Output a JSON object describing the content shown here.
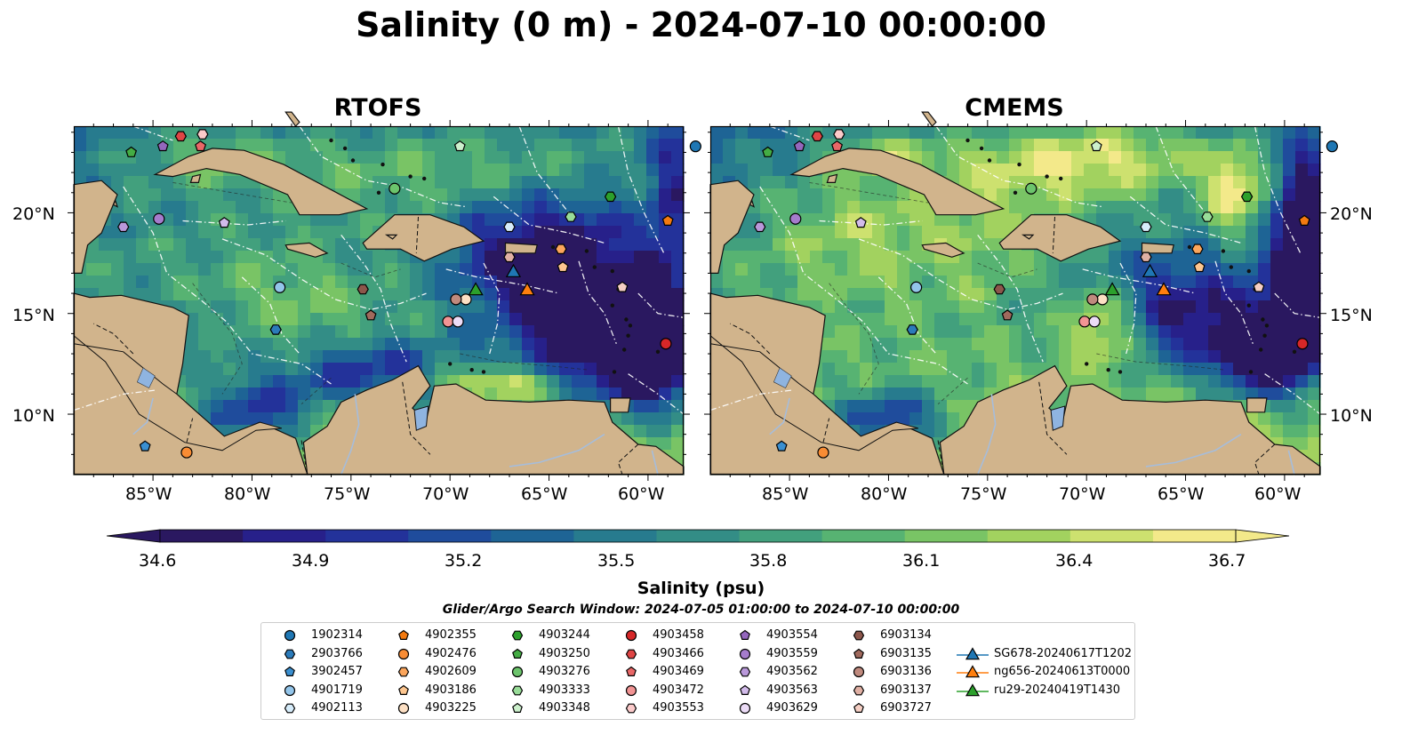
{
  "title": "Salinity (0 m) - 2024-07-10 00:00:00",
  "panels": [
    {
      "title": "RTOFS"
    },
    {
      "title": "CMEMS"
    }
  ],
  "lat_labels": [
    "20°N",
    "15°N",
    "10°N"
  ],
  "lon_labels": [
    "85°W",
    "80°W",
    "75°W",
    "70°W",
    "65°W",
    "60°W"
  ],
  "colorbar": {
    "label": "Salinity (psu)",
    "ticks": [
      "34.6",
      "34.9",
      "35.2",
      "35.5",
      "35.8",
      "36.1",
      "36.4",
      "36.7"
    ],
    "colors": [
      "#2a1860",
      "#27208a",
      "#23329a",
      "#1f4c9c",
      "#1e6495",
      "#277b8e",
      "#338d86",
      "#42a07d",
      "#57b372",
      "#79c465",
      "#a2d25f",
      "#cde16f",
      "#f3e98a"
    ]
  },
  "search_window": "Glider/Argo Search Window: 2024-07-05 01:00:00 to 2024-07-10 00:00:00",
  "map_colors": {
    "land": "#d1b48c",
    "lake": "#8fb4e0",
    "river": "#a6bddb"
  },
  "legend": [
    {
      "label": "1902314",
      "marker": "circle",
      "color": "#1f77b4"
    },
    {
      "label": "2903766",
      "marker": "hexagon",
      "color": "#2b7bba"
    },
    {
      "label": "3902457",
      "marker": "pentagon",
      "color": "#3a8fd0"
    },
    {
      "label": "4901719",
      "marker": "circle",
      "color": "#93c5ea"
    },
    {
      "label": "4902113",
      "marker": "hexagon",
      "color": "#d6ecfa"
    },
    {
      "label": "4902355",
      "marker": "pentagon",
      "color": "#f37a10"
    },
    {
      "label": "4902476",
      "marker": "circle",
      "color": "#f88c34"
    },
    {
      "label": "4902609",
      "marker": "hexagon",
      "color": "#fca65c"
    },
    {
      "label": "4903186",
      "marker": "pentagon",
      "color": "#fdc68f"
    },
    {
      "label": "4903225",
      "marker": "circle",
      "color": "#fde0c4"
    },
    {
      "label": "4903244",
      "marker": "hexagon",
      "color": "#2ca02c"
    },
    {
      "label": "4903250",
      "marker": "pentagon",
      "color": "#44ad44"
    },
    {
      "label": "4903276",
      "marker": "circle",
      "color": "#6cc46c"
    },
    {
      "label": "4903333",
      "marker": "hexagon",
      "color": "#98dc98"
    },
    {
      "label": "4903348",
      "marker": "pentagon",
      "color": "#ccf0cc"
    },
    {
      "label": "4903458",
      "marker": "circle",
      "color": "#d62728"
    },
    {
      "label": "4903466",
      "marker": "hexagon",
      "color": "#df4545"
    },
    {
      "label": "4903469",
      "marker": "pentagon",
      "color": "#e96767"
    },
    {
      "label": "4903472",
      "marker": "circle",
      "color": "#f29494"
    },
    {
      "label": "4903553",
      "marker": "hexagon",
      "color": "#fbcaca"
    },
    {
      "label": "4903554",
      "marker": "pentagon",
      "color": "#9467bd"
    },
    {
      "label": "4903559",
      "marker": "circle",
      "color": "#a57ccc"
    },
    {
      "label": "4903562",
      "marker": "hexagon",
      "color": "#b998da"
    },
    {
      "label": "4903563",
      "marker": "pentagon",
      "color": "#d2bbea"
    },
    {
      "label": "4903629",
      "marker": "circle",
      "color": "#ecdcf7"
    },
    {
      "label": "6903134",
      "marker": "hexagon",
      "color": "#8c564b"
    },
    {
      "label": "6903135",
      "marker": "pentagon",
      "color": "#a0695d"
    },
    {
      "label": "6903136",
      "marker": "circle",
      "color": "#c08a7e"
    },
    {
      "label": "6903137",
      "marker": "hexagon",
      "color": "#e0b0a4"
    },
    {
      "label": "6903727",
      "marker": "pentagon",
      "color": "#f5cfc4"
    },
    {
      "label": "SG678-20240617T1202",
      "marker": "triangle",
      "color": "#1f77b4"
    },
    {
      "label": "ng656-20240613T0000",
      "marker": "triangle",
      "color": "#ff7f0e"
    },
    {
      "label": "ru29-20240419T1430",
      "marker": "triangle",
      "color": "#2ca02c"
    }
  ],
  "floats": [
    {
      "id": "1902314",
      "lon": -57.6,
      "lat": 23.3
    },
    {
      "id": "2903766",
      "lon": -78.8,
      "lat": 14.2
    },
    {
      "id": "3902457",
      "lon": -85.4,
      "lat": 8.4
    },
    {
      "id": "4901719",
      "lon": -78.6,
      "lat": 16.3
    },
    {
      "id": "4902113",
      "lon": -67.0,
      "lat": 19.3
    },
    {
      "id": "4902355",
      "lon": -59.0,
      "lat": 19.6
    },
    {
      "id": "4902476",
      "lon": -83.3,
      "lat": 8.1
    },
    {
      "id": "4902609",
      "lon": -64.4,
      "lat": 18.2
    },
    {
      "id": "4903186",
      "lon": -64.3,
      "lat": 17.3
    },
    {
      "id": "4903225",
      "lon": -69.2,
      "lat": 15.7
    },
    {
      "id": "4903244",
      "lon": -61.9,
      "lat": 20.8
    },
    {
      "id": "4903250",
      "lon": -86.1,
      "lat": 23.0
    },
    {
      "id": "4903276",
      "lon": -72.8,
      "lat": 21.2
    },
    {
      "id": "4903333",
      "lon": -63.9,
      "lat": 19.8
    },
    {
      "id": "4903348",
      "lon": -69.5,
      "lat": 23.3
    },
    {
      "id": "4903458",
      "lon": -59.1,
      "lat": 13.5
    },
    {
      "id": "4903466",
      "lon": -83.6,
      "lat": 23.8
    },
    {
      "id": "4903469",
      "lon": -82.6,
      "lat": 23.3
    },
    {
      "id": "4903472",
      "lon": -70.1,
      "lat": 14.6
    },
    {
      "id": "4903553",
      "lon": -82.5,
      "lat": 23.9
    },
    {
      "id": "4903554",
      "lon": -84.5,
      "lat": 23.3
    },
    {
      "id": "4903559",
      "lon": -84.7,
      "lat": 19.7
    },
    {
      "id": "4903562",
      "lon": -86.5,
      "lat": 19.3
    },
    {
      "id": "4903563",
      "lon": -81.4,
      "lat": 19.5
    },
    {
      "id": "4903629",
      "lon": -69.6,
      "lat": 14.6
    },
    {
      "id": "6903134",
      "lon": -74.4,
      "lat": 16.2
    },
    {
      "id": "6903135",
      "lon": -74.0,
      "lat": 14.9
    },
    {
      "id": "6903136",
      "lon": -69.7,
      "lat": 15.7
    },
    {
      "id": "6903137",
      "lon": -67.0,
      "lat": 17.8
    },
    {
      "id": "6903727",
      "lon": -61.3,
      "lat": 16.3
    }
  ],
  "gliders": [
    {
      "id": "SG678-20240617T1202",
      "lon": -66.8,
      "lat": 17.1
    },
    {
      "id": "ng656-20240613T0000",
      "lon": -66.1,
      "lat": 16.2
    },
    {
      "id": "ru29-20240419T1430",
      "lon": -68.7,
      "lat": 16.2
    }
  ]
}
